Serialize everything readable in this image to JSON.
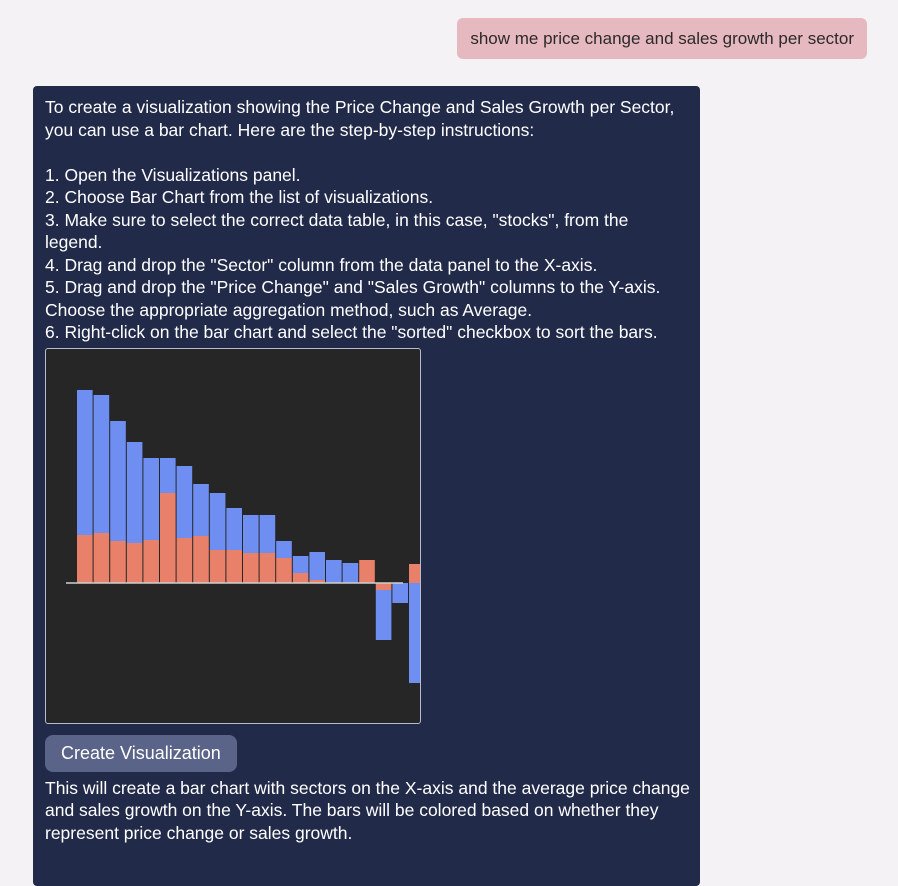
{
  "user_message": "show me price change and sales growth per sector",
  "assistant": {
    "intro": "To create a visualization showing the Price Change and Sales Growth per Sector, you can use a bar chart. Here are the step-by-step instructions:",
    "steps": [
      "1. Open the Visualizations panel.",
      "2. Choose Bar Chart from the list of visualizations.",
      "3. Make sure to select the correct data table, in this case, \"stocks\", from the legend.",
      "4. Drag and drop the \"Sector\" column from the data panel to the X-axis.",
      "5. Drag and drop the \"Price Change\" and \"Sales Growth\" columns to the Y-axis. Choose the appropriate aggregation method, such as Average.",
      "6. Right-click on the bar chart and select the \"sorted\" checkbox to sort the bars."
    ],
    "button_label": "Create Visualization",
    "outro": "This will create a bar chart with sectors on the X-axis and the average price change and sales growth on the Y-axis. The bars will be colored based on whether they represent price change or sales growth."
  },
  "chart_data": {
    "type": "bar",
    "stacked": true,
    "grid": false,
    "legend": "none",
    "ylim": [
      -100,
      193
    ],
    "series": [
      {
        "color": "#e8806a",
        "values": [
          48,
          50,
          42,
          40,
          43,
          90,
          45,
          47,
          33,
          33,
          30,
          30,
          25,
          10,
          3,
          0,
          0,
          23,
          -7,
          0,
          19
        ]
      },
      {
        "color": "#6f8ef2",
        "values": [
          145,
          138,
          120,
          101,
          82,
          35,
          72,
          52,
          57,
          42,
          38,
          38,
          17,
          17,
          28,
          23,
          20,
          0,
          -50,
          -20,
          -100
        ]
      }
    ]
  }
}
